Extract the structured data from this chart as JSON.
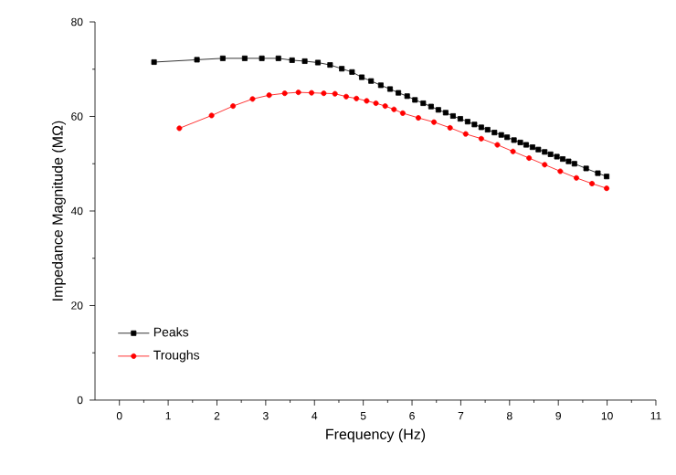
{
  "chart_data": {
    "type": "line",
    "xlabel": "Frequency (Hz)",
    "ylabel": "Impedance Magnitude (MΩ)",
    "xlim": [
      -0.5,
      11
    ],
    "ylim": [
      0,
      80
    ],
    "xticks": [
      0,
      1,
      2,
      3,
      4,
      5,
      6,
      7,
      8,
      9,
      10,
      11
    ],
    "yticks": [
      0,
      20,
      40,
      60,
      80
    ],
    "grid": false,
    "legend": "bottom left",
    "line_style": "solid",
    "series": [
      {
        "name": "Peaks",
        "color": "#000000",
        "marker": "square",
        "x": [
          0.71,
          1.59,
          2.12,
          2.57,
          2.92,
          3.26,
          3.54,
          3.8,
          4.07,
          4.32,
          4.56,
          4.77,
          4.97,
          5.16,
          5.36,
          5.55,
          5.72,
          5.9,
          6.06,
          6.23,
          6.39,
          6.54,
          6.69,
          6.84,
          6.99,
          7.14,
          7.28,
          7.42,
          7.55,
          7.69,
          7.83,
          7.95,
          8.09,
          8.22,
          8.34,
          8.47,
          8.59,
          8.72,
          8.84,
          8.97,
          9.09,
          9.21,
          9.33,
          9.57,
          9.81,
          9.99
        ],
        "values": [
          71.5,
          72.0,
          72.3,
          72.3,
          72.3,
          72.3,
          71.9,
          71.7,
          71.4,
          70.9,
          70.1,
          69.4,
          68.3,
          67.5,
          66.6,
          65.8,
          65.0,
          64.3,
          63.5,
          62.8,
          62.1,
          61.4,
          60.8,
          60.1,
          59.5,
          58.9,
          58.3,
          57.7,
          57.2,
          56.6,
          56.1,
          55.6,
          55.0,
          54.5,
          54.0,
          53.5,
          53.0,
          52.5,
          52.0,
          51.5,
          51.0,
          50.5,
          50.0,
          49.0,
          48.0,
          47.3
        ]
      },
      {
        "name": "Troughs",
        "color": "#ff0000",
        "marker": "circle",
        "x": [
          1.23,
          1.89,
          2.33,
          2.73,
          3.07,
          3.39,
          3.67,
          3.94,
          4.19,
          4.42,
          4.65,
          4.86,
          5.07,
          5.26,
          5.45,
          5.63,
          5.81,
          6.13,
          6.45,
          6.78,
          7.1,
          7.42,
          7.75,
          8.07,
          8.4,
          8.72,
          9.04,
          9.37,
          9.69,
          9.99
        ],
        "values": [
          57.5,
          60.2,
          62.2,
          63.7,
          64.5,
          64.9,
          65.1,
          65.0,
          64.9,
          64.8,
          64.2,
          63.8,
          63.3,
          62.8,
          62.2,
          61.5,
          60.7,
          59.7,
          58.8,
          57.6,
          56.3,
          55.3,
          54.0,
          52.6,
          51.2,
          49.8,
          48.4,
          47.0,
          45.8,
          44.8
        ]
      }
    ]
  }
}
